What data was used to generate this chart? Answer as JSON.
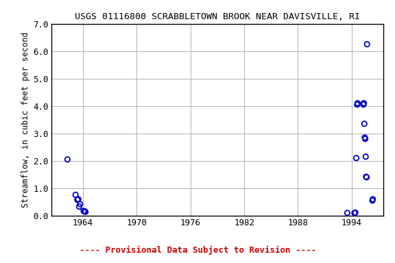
{
  "title": "USGS 01116800 SCRABBLETOWN BROOK NEAR DAVISVILLE, RI",
  "ylabel": "Streamflow, in cubic feet per second",
  "footnote": "---- Provisional Data Subject to Revision ----",
  "footnote_color": "#cc0000",
  "xlim": [
    1960.5,
    1997.5
  ],
  "ylim": [
    0.0,
    7.0
  ],
  "xticks": [
    1964,
    1970,
    1976,
    1982,
    1988,
    1994
  ],
  "yticks": [
    0.0,
    1.0,
    2.0,
    3.0,
    4.0,
    5.0,
    6.0,
    7.0
  ],
  "background_color": "#ffffff",
  "plot_bg_color": "#ffffff",
  "grid_color": "#b0b0b0",
  "marker_color": "#0000cc",
  "marker_size": 28,
  "marker_linewidth": 1.3,
  "x_data": [
    1962.3,
    1963.2,
    1963.4,
    1963.5,
    1963.6,
    1963.7,
    1964.1,
    1964.2,
    1964.3,
    1993.5,
    1994.3,
    1994.4,
    1994.5,
    1994.6,
    1994.65,
    1995.7,
    1995.3,
    1995.35,
    1995.4,
    1995.45,
    1995.5,
    1995.55,
    1995.6,
    1995.65,
    1996.3,
    1996.35
  ],
  "y_data": [
    2.05,
    0.76,
    0.58,
    0.6,
    0.33,
    0.42,
    0.17,
    0.16,
    0.14,
    0.1,
    0.1,
    0.11,
    2.1,
    4.05,
    4.1,
    6.25,
    4.05,
    4.1,
    3.35,
    2.85,
    2.8,
    2.15,
    1.42,
    1.4,
    0.55,
    0.6
  ],
  "title_fontsize": 9.5,
  "axis_label_fontsize": 8.5,
  "tick_fontsize": 9,
  "footnote_fontsize": 9
}
